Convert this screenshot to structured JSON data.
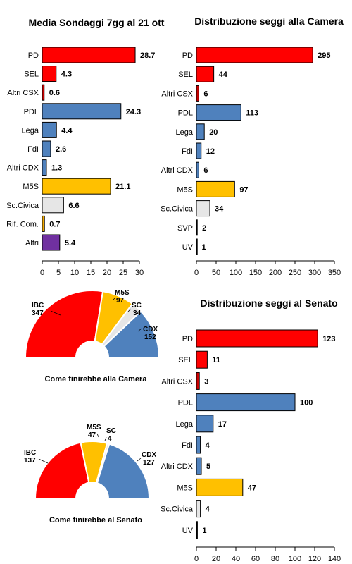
{
  "colors": {
    "red": "#ff0000",
    "darkred": "#cc0000",
    "blue": "#4f81bd",
    "yellow": "#ffc000",
    "lightgray": "#e6e6e6",
    "orange": "#f2a900",
    "purple": "#7030a0",
    "black": "#000000"
  },
  "chart_data": [
    {
      "type": "bar",
      "title": "Media Sondaggi 7gg al 21 ott",
      "categories": [
        "PD",
        "SEL",
        "Altri CSX",
        "PDL",
        "Lega",
        "FdI",
        "Altri CDX",
        "M5S",
        "Sc.Civica",
        "Rif. Com.",
        "Altri"
      ],
      "values": [
        28.7,
        4.3,
        0.6,
        24.3,
        4.4,
        2.6,
        1.3,
        21.1,
        6.6,
        0.7,
        5.4
      ],
      "value_labels": [
        "28.7",
        "4.3",
        "0.6",
        "24.3",
        "4.4",
        "2.6",
        "1.3",
        "21.1",
        "6.6",
        "0.7",
        "5.4"
      ],
      "bar_colors": [
        "red",
        "red",
        "darkred",
        "blue",
        "blue",
        "blue",
        "blue",
        "yellow",
        "lightgray",
        "orange",
        "purple"
      ],
      "xlim": [
        0,
        30
      ],
      "xticks": [
        "0",
        "5",
        "10",
        "15",
        "20",
        "25",
        "30"
      ]
    },
    {
      "type": "bar",
      "title": "Distribuzione seggi alla Camera",
      "categories": [
        "PD",
        "SEL",
        "Altri CSX",
        "PDL",
        "Lega",
        "FdI",
        "Altri CDX",
        "M5S",
        "Sc.Civica",
        "SVP",
        "UV"
      ],
      "values": [
        295,
        44,
        6,
        113,
        20,
        12,
        6,
        97,
        34,
        2,
        1
      ],
      "value_labels": [
        "295",
        "44",
        "6",
        "113",
        "20",
        "12",
        "6",
        "97",
        "34",
        "2",
        "1"
      ],
      "bar_colors": [
        "red",
        "red",
        "darkred",
        "blue",
        "blue",
        "blue",
        "blue",
        "yellow",
        "lightgray",
        "black",
        "black"
      ],
      "xlim": [
        0,
        350
      ],
      "xticks": [
        "0",
        "50",
        "100",
        "150",
        "200",
        "250",
        "300",
        "350"
      ]
    },
    {
      "type": "bar",
      "title": "Distribuzione seggi al Senato",
      "categories": [
        "PD",
        "SEL",
        "Altri CSX",
        "PDL",
        "Lega",
        "FdI",
        "Altri CDX",
        "M5S",
        "Sc.Civica",
        "UV"
      ],
      "values": [
        123,
        11,
        3,
        100,
        17,
        4,
        5,
        47,
        4,
        1
      ],
      "value_labels": [
        "123",
        "11",
        "3",
        "100",
        "17",
        "4",
        "5",
        "47",
        "4",
        "1"
      ],
      "bar_colors": [
        "red",
        "red",
        "darkred",
        "blue",
        "blue",
        "blue",
        "blue",
        "yellow",
        "lightgray",
        "black"
      ],
      "xlim": [
        0,
        140
      ],
      "xticks": [
        "0",
        "20",
        "40",
        "60",
        "80",
        "100",
        "120",
        "140"
      ]
    },
    {
      "type": "pie",
      "subtype": "parliament-half-donut",
      "caption": "Come finirebbe alla Camera",
      "slices": [
        {
          "name": "IBC",
          "value": 347,
          "value_label": "347",
          "color": "red"
        },
        {
          "name": "M5S",
          "value": 97,
          "value_label": "97",
          "color": "yellow"
        },
        {
          "name": "SC",
          "value": 34,
          "value_label": "34",
          "color": "lightgray"
        },
        {
          "name": "CDX",
          "value": 152,
          "value_label": "152",
          "color": "blue"
        }
      ]
    },
    {
      "type": "pie",
      "subtype": "parliament-half-donut",
      "caption": "Come finirebbe al Senato",
      "slices": [
        {
          "name": "IBC",
          "value": 137,
          "value_label": "137",
          "color": "red"
        },
        {
          "name": "M5S",
          "value": 47,
          "value_label": "47",
          "color": "yellow"
        },
        {
          "name": "SC",
          "value": 4,
          "value_label": "4",
          "color": "lightgray"
        },
        {
          "name": "CDX",
          "value": 127,
          "value_label": "127",
          "color": "blue"
        }
      ]
    }
  ]
}
